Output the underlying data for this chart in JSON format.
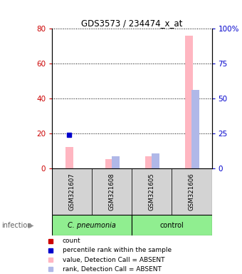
{
  "title": "GDS3573 / 234474_x_at",
  "samples": [
    "GSM321607",
    "GSM321608",
    "GSM321605",
    "GSM321606"
  ],
  "bar_value_absent": [
    12.5,
    5.5,
    7.0,
    76.0
  ],
  "bar_rank_absent_pct": [
    null,
    9.0,
    11.0,
    56.0
  ],
  "dot_rank_pct": [
    24.0,
    null,
    null,
    null
  ],
  "ylim_left": [
    0,
    80
  ],
  "ylim_right": [
    0,
    100
  ],
  "yticks_left": [
    0,
    20,
    40,
    60,
    80
  ],
  "yticks_right": [
    0,
    25,
    50,
    75,
    100
  ],
  "left_tick_labels": [
    "0",
    "20",
    "40",
    "60",
    "80"
  ],
  "right_tick_labels": [
    "0",
    "25",
    "50",
    "75",
    "100%"
  ],
  "left_color": "#cc0000",
  "right_color": "#0000cc",
  "value_absent_color": "#ffb6c1",
  "rank_absent_color": "#b0b8e8",
  "percentile_color": "#0000cc",
  "group1_label": "C. pneumonia",
  "group2_label": "control",
  "factor_label": "infection",
  "legend_items": [
    {
      "label": "count",
      "color": "#cc0000"
    },
    {
      "label": "percentile rank within the sample",
      "color": "#0000cc"
    },
    {
      "label": "value, Detection Call = ABSENT",
      "color": "#ffb6c1"
    },
    {
      "label": "rank, Detection Call = ABSENT",
      "color": "#b0b8e8"
    }
  ],
  "bg_color": "#ffffff",
  "gray_box_color": "#d3d3d3"
}
